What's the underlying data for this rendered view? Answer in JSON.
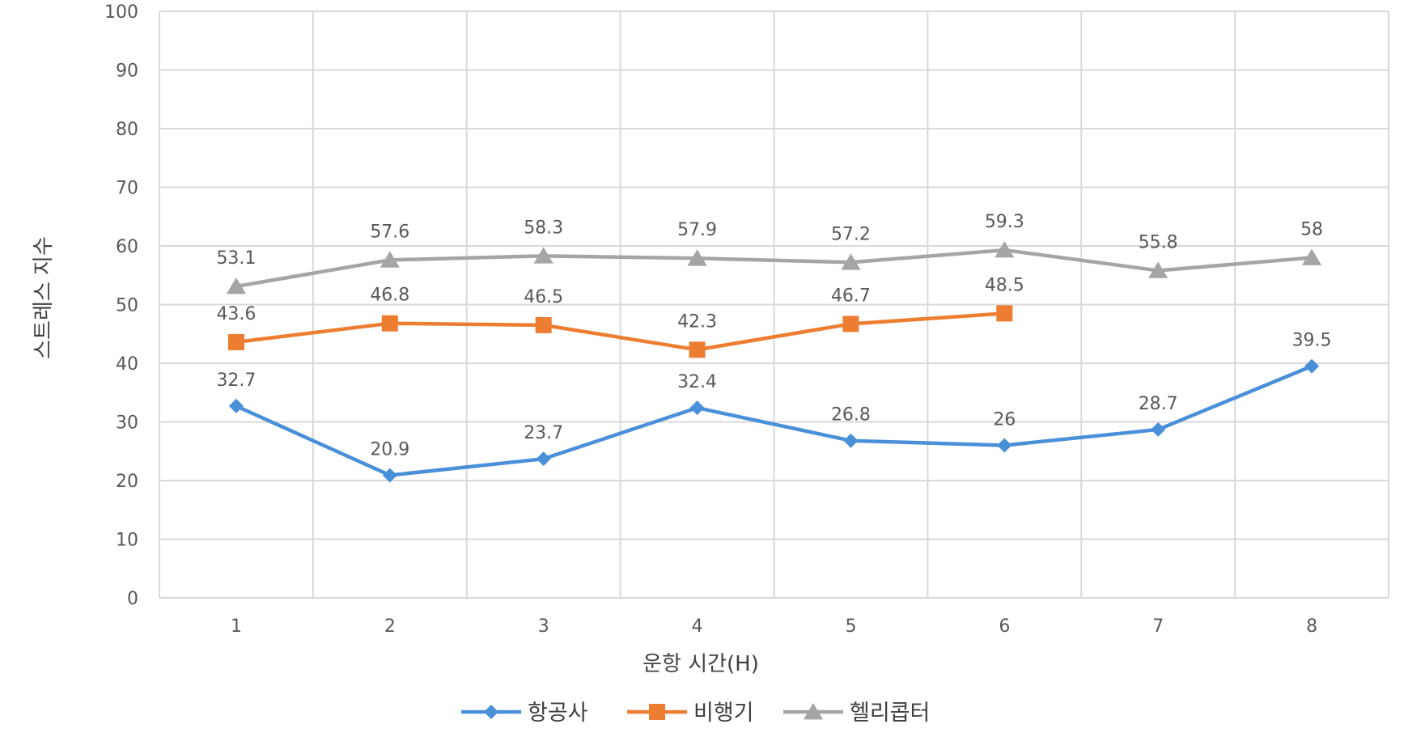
{
  "chart_data": {
    "type": "line",
    "xlabel": "운항 시간(H)",
    "ylabel": "스트레스 지수",
    "categories": [
      "1",
      "2",
      "3",
      "4",
      "5",
      "6",
      "7",
      "8"
    ],
    "ylim": [
      0,
      100
    ],
    "yticks": [
      0,
      10,
      20,
      30,
      40,
      50,
      60,
      70,
      80,
      90,
      100
    ],
    "grid": true,
    "legend_position": "bottom",
    "series": [
      {
        "name": "항공사",
        "color": "#4A90D9",
        "marker": "diamond",
        "values": [
          32.7,
          20.9,
          23.7,
          32.4,
          26.8,
          26,
          28.7,
          39.5
        ],
        "labels": [
          "32.7",
          "20.9",
          "23.7",
          "32.4",
          "26.8",
          "26",
          "28.7",
          "39.5"
        ]
      },
      {
        "name": "비행기",
        "color": "#ED7D31",
        "marker": "square",
        "values": [
          43.6,
          46.8,
          46.5,
          42.3,
          46.7,
          48.5,
          null,
          null
        ],
        "labels": [
          "43.6",
          "46.8",
          "46.5",
          "42.3",
          "46.7",
          "48.5",
          null,
          null
        ]
      },
      {
        "name": "헬리콥터",
        "color": "#A5A5A5",
        "marker": "triangle",
        "values": [
          53.1,
          57.6,
          58.3,
          57.9,
          57.2,
          59.3,
          55.8,
          58
        ],
        "labels": [
          "53.1",
          "57.6",
          "58.3",
          "57.9",
          "57.2",
          "59.3",
          "55.8",
          "58"
        ]
      }
    ]
  }
}
